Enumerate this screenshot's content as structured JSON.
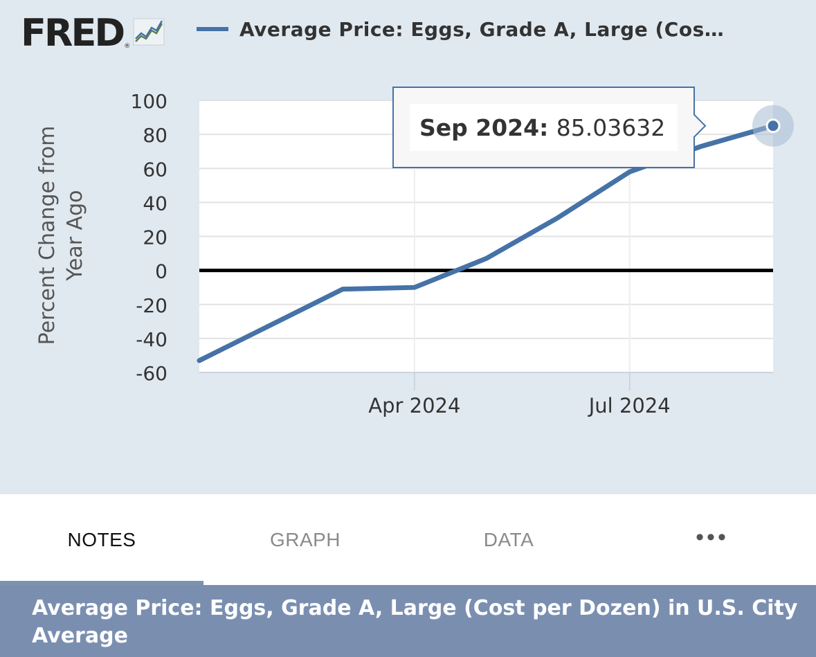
{
  "header": {
    "logo_text": "FRED",
    "logo_reg": "®",
    "logo_icon": "fred-graph-icon",
    "legend_label": "Average Price: Eggs, Grade A, Large (Cos…"
  },
  "tooltip": {
    "label": "Sep 2024:",
    "value": "85.03632"
  },
  "tabs": [
    {
      "label": "NOTES",
      "active": true
    },
    {
      "label": "GRAPH",
      "active": false
    },
    {
      "label": "DATA",
      "active": false
    },
    {
      "label": "•••",
      "icon": "more-icon",
      "active": false
    }
  ],
  "title_bar": {
    "text": "Average Price: Eggs, Grade A, Large (Cost per Dozen) in U.S. City Average"
  },
  "colors": {
    "series": "#4572a7",
    "panel_bg": "#e1e9f0",
    "title_bar": "#7a8fb0"
  },
  "chart_data": {
    "type": "line",
    "title": "",
    "xlabel": "",
    "ylabel": "Percent Change from Year Ago",
    "x": [
      "2024-01",
      "2024-02",
      "2024-03",
      "2024-04",
      "2024-05",
      "2024-06",
      "2024-07",
      "2024-08",
      "2024-09"
    ],
    "x_ticks": [
      {
        "label": "Apr 2024",
        "x": "2024-04"
      },
      {
        "label": "Jul 2024",
        "x": "2024-07"
      }
    ],
    "y_ticks": [
      100,
      80,
      60,
      40,
      20,
      0,
      -20,
      -40,
      -60
    ],
    "ylim": [
      -60,
      100
    ],
    "series": [
      {
        "name": "Average Price: Eggs, Grade A, Large (Cos…",
        "values": [
          -53,
          -32,
          -11,
          -10,
          7,
          31,
          58,
          73,
          85.03632
        ]
      }
    ],
    "zero_line": true,
    "grid": true,
    "legend": "top-left",
    "highlight": {
      "x": "2024-09",
      "value": 85.03632
    }
  }
}
